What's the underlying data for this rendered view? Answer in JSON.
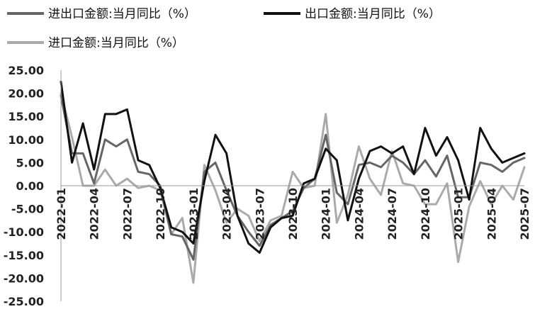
{
  "chart_data": {
    "type": "line",
    "title": "",
    "xlabel": "",
    "ylabel": "",
    "ylim": [
      -25,
      25
    ],
    "y_ticks": [
      "25.00",
      "20.00",
      "15.00",
      "10.00",
      "5.00",
      "0.00",
      "-5.00",
      "-10.00",
      "-15.00",
      "-20.00",
      "-25.00"
    ],
    "x": [
      "2022-01",
      "2022-02",
      "2022-03",
      "2022-04",
      "2022-05",
      "2022-06",
      "2022-07",
      "2022-08",
      "2022-09",
      "2022-10",
      "2022-11",
      "2022-12",
      "2023-01",
      "2023-02",
      "2023-03",
      "2023-04",
      "2023-05",
      "2023-06",
      "2023-07",
      "2023-08",
      "2023-09",
      "2023-10",
      "2023-11",
      "2023-12",
      "2024-01",
      "2024-02",
      "2024-03",
      "2024-04",
      "2024-05",
      "2024-06",
      "2024-07",
      "2024-08",
      "2024-09",
      "2024-10",
      "2024-11",
      "2024-12",
      "2025-01",
      "2025-02",
      "2025-03",
      "2025-04",
      "2025-05",
      "2025-06",
      "2025-07"
    ],
    "x_tick_labels": [
      "2022-01",
      "2022-04",
      "2022-07",
      "2022-10",
      "2023-01",
      "2023-04",
      "2023-07",
      "2023-10",
      "2024-01",
      "2024-04",
      "2024-07",
      "2024-10",
      "2025-01",
      "2025-04",
      "2025-07"
    ],
    "legend_position": "top",
    "grid": false,
    "series": [
      {
        "name": "进出口金额:当月同比（%）",
        "color": "#666666",
        "values": [
          19.5,
          7.0,
          7.0,
          0.5,
          10.0,
          8.5,
          10.0,
          3.0,
          2.5,
          0.0,
          -10.5,
          -11.0,
          -16.0,
          3.0,
          5.0,
          -1.0,
          -6.5,
          -10.0,
          -13.0,
          -8.5,
          -7.0,
          -5.5,
          -0.5,
          1.5,
          11.0,
          -1.5,
          -4.0,
          4.5,
          5.0,
          4.0,
          6.5,
          5.0,
          2.5,
          5.5,
          2.0,
          6.5,
          -2.5,
          -2.5,
          5.0,
          4.5,
          3.0,
          5.0,
          6.0
        ]
      },
      {
        "name": "出口金额:当月同比（%）",
        "color": "#111111",
        "values": [
          22.5,
          5.0,
          13.5,
          3.5,
          15.5,
          15.5,
          16.5,
          5.5,
          4.5,
          -0.5,
          -9.0,
          -10.0,
          -12.5,
          1.0,
          11.0,
          7.0,
          -6.5,
          -12.5,
          -14.5,
          -9.0,
          -7.0,
          -6.5,
          0.5,
          1.5,
          8.0,
          5.5,
          -7.5,
          1.5,
          7.5,
          8.5,
          7.0,
          8.5,
          2.5,
          12.5,
          6.5,
          10.5,
          5.5,
          -3.0,
          12.5,
          8.0,
          5.0,
          6.0,
          7.0
        ]
      },
      {
        "name": "进口金额:当月同比（%）",
        "color": "#aaaaaa",
        "values": [
          20.0,
          10.5,
          0.0,
          0.0,
          3.5,
          0.0,
          1.5,
          -0.5,
          0.0,
          -1.0,
          -10.5,
          -7.0,
          -21.0,
          4.5,
          -1.0,
          -8.0,
          -5.0,
          -6.5,
          -12.0,
          -7.5,
          -6.5,
          3.0,
          -0.5,
          0.0,
          15.5,
          -8.0,
          -2.0,
          8.5,
          1.5,
          -2.0,
          7.5,
          0.5,
          0.0,
          -4.0,
          -4.0,
          0.5,
          -16.5,
          -4.5,
          1.0,
          -4.0,
          0.0,
          -3.0,
          4.0
        ]
      }
    ]
  }
}
